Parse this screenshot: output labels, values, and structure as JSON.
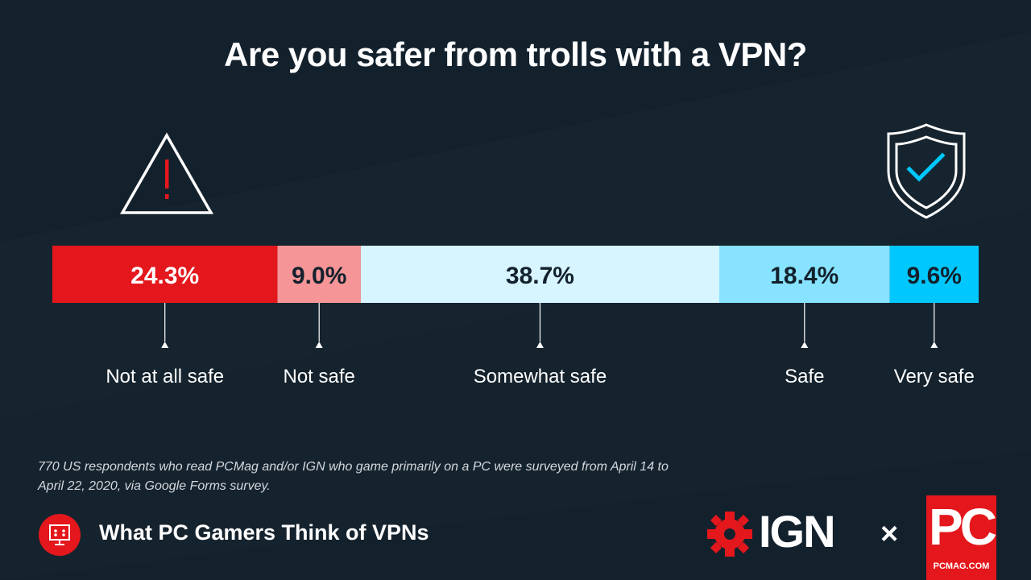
{
  "title": "Are you safer from trolls with a VPN?",
  "chart_data": {
    "type": "bar",
    "orientation": "horizontal-stacked",
    "categories": [
      "Not at all safe",
      "Not safe",
      "Somewhat safe",
      "Safe",
      "Very safe"
    ],
    "values": [
      24.3,
      9.0,
      38.7,
      18.4,
      9.6
    ],
    "value_labels": [
      "24.3%",
      "9.0%",
      "38.7%",
      "18.4%",
      "9.6%"
    ],
    "colors": [
      "#e3171c",
      "#f59597",
      "#d6f5ff",
      "#87e3ff",
      "#00c8ff"
    ],
    "label_colors": [
      "#ffffff",
      "#13212d",
      "#13212d",
      "#13212d",
      "#13212d"
    ],
    "xlim": [
      0,
      100
    ],
    "legend": "labels-below-each-segment"
  },
  "icons": {
    "left": "warning-triangle-icon",
    "right": "shield-check-icon"
  },
  "footnote": "770 US respondents who read PCMag and/or IGN who game primarily on a PC were surveyed from April 14 to April 22, 2020, via Google Forms survey.",
  "series_title": "What PC Gamers Think of VPNs",
  "brands": {
    "ign": "IGN",
    "separator": "×",
    "pc": "PC",
    "pc_site": "PCMAG.COM"
  },
  "palette": {
    "background": "#13212d",
    "accent": "#e3171c"
  }
}
